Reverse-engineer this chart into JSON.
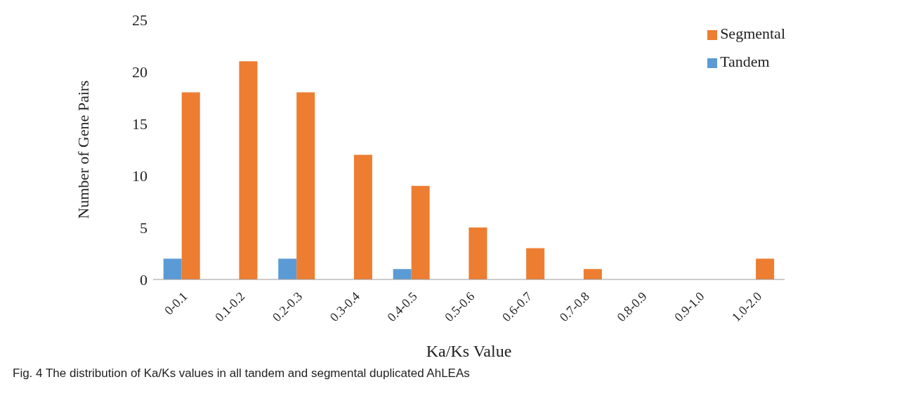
{
  "chart_data": {
    "type": "bar",
    "xlabel": "Ka/Ks Value",
    "ylabel": "Number of Gene Pairs",
    "categories": [
      "0-0.1",
      "0.1-0.2",
      "0.2-0.3",
      "0.3-0.4",
      "0.4-0.5",
      "0.5-0.6",
      "0.6-0.7",
      "0.7-0.8",
      "0.8-0.9",
      "0.9-1.0",
      "1.0-2.0"
    ],
    "series": [
      {
        "name": "Tandem",
        "color": "#5b9bd5",
        "values": [
          2,
          0,
          2,
          0,
          1,
          0,
          0,
          0,
          0,
          0,
          0
        ]
      },
      {
        "name": "Segmental",
        "color": "#ed7d31",
        "values": [
          18,
          21,
          18,
          12,
          9,
          5,
          3,
          1,
          0,
          0,
          2
        ]
      }
    ],
    "ylim": [
      0,
      25
    ],
    "yticks": [
      0,
      5,
      10,
      15,
      20,
      25
    ],
    "grid": false,
    "legend": "top right",
    "annotations": [
      "Fig. 4  The distribution of Ka/Ks values in all tandem and segmental duplicated AhLEAs"
    ]
  }
}
